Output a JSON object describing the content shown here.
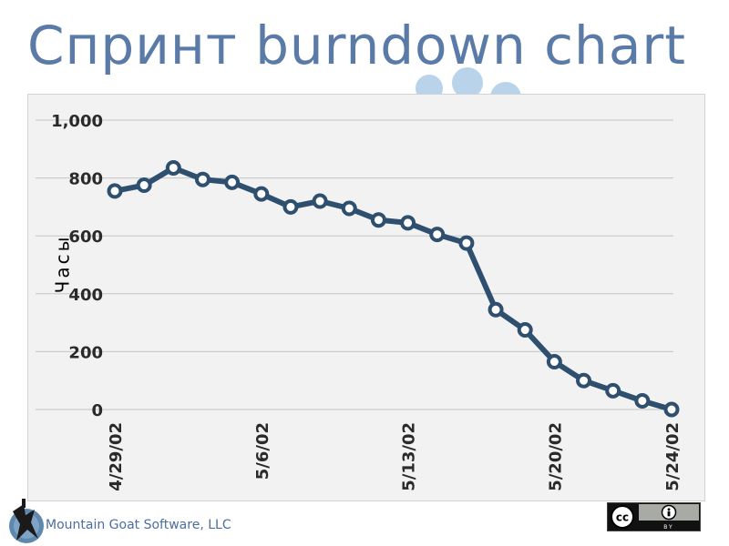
{
  "slide": {
    "title": "Спринт burndown chart",
    "company": "Mountain Goat Software, LLC",
    "license_badge": {
      "by_label": "BY",
      "icons": [
        "cc-icon",
        "attribution-icon"
      ]
    }
  },
  "colors": {
    "title": "#5a7aa8",
    "line": "#2f4f6e",
    "marker_fill": "#ffffff",
    "bubbles": "#b8d3ea"
  },
  "chart_data": {
    "type": "line",
    "ylabel": "Часы",
    "xlabel": "",
    "ylim": [
      0,
      1000
    ],
    "yticks": [
      0,
      200,
      400,
      600,
      800,
      1000
    ],
    "ytick_labels": [
      "0",
      "200",
      "400",
      "600",
      "800",
      "1,000"
    ],
    "xtick_labels": [
      "4/29/02",
      "5/6/02",
      "5/13/02",
      "5/20/02",
      "5/24/02"
    ],
    "xtick_positions": [
      0,
      5,
      10,
      15,
      19
    ],
    "grid": true,
    "series": [
      {
        "values": [
          755,
          775,
          835,
          795,
          785,
          745,
          700,
          720,
          695,
          655,
          645,
          605,
          575,
          345,
          275,
          165,
          100,
          65,
          30,
          0
        ]
      }
    ]
  }
}
